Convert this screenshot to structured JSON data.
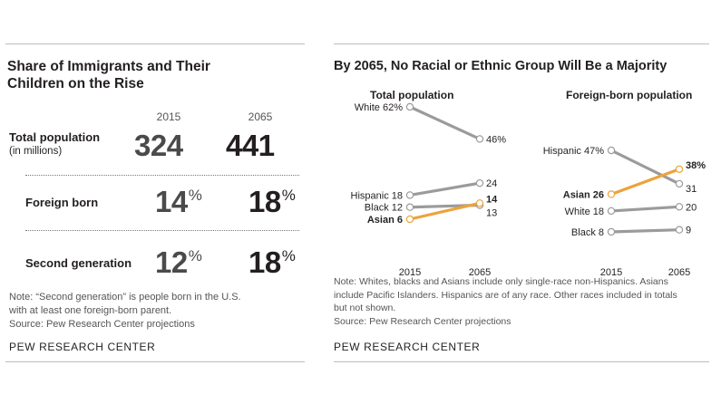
{
  "left": {
    "title_line1": "Share of Immigrants and Their",
    "title_line2": "Children on the Rise",
    "year_a": "2015",
    "year_b": "2065",
    "rows": [
      {
        "label": "Total population",
        "sub": "(in millions)",
        "a": "324",
        "b": "441",
        "pct": false
      },
      {
        "label": "Foreign born",
        "a": "14",
        "b": "18",
        "pct": true
      },
      {
        "label": "Second generation",
        "a": "12",
        "b": "18",
        "pct": true
      }
    ],
    "pct_sign": "%",
    "note_line1": "Note: “Second generation” is people born in the U.S.",
    "note_line2": "with at least one foreign-born parent.",
    "source": "Source: Pew Research Center projections",
    "brand": "PEW RESEARCH CENTER"
  },
  "right": {
    "title": "By 2065, No Racial or Ethnic Group Will Be a Majority",
    "note_line1": "Note: Whites, blacks and Asians include only single-race non-Hispanics. Asians",
    "note_line2": "include Pacific Islanders. Hispanics are of any race. Other races included in totals",
    "note_line3": "but not shown.",
    "source": "Source: Pew Research Center projections",
    "brand": "PEW RESEARCH CENTER"
  },
  "colors": {
    "gray_line": "#9b9b9b",
    "asian_line": "#eca33b",
    "text": "#231f20",
    "muted": "#555555"
  },
  "chart_data": [
    {
      "type": "table",
      "title": "Share of Immigrants and Their Children on the Rise",
      "columns": [
        "2015",
        "2065"
      ],
      "rows": [
        {
          "label": "Total population (in millions)",
          "values": [
            324,
            441
          ]
        },
        {
          "label": "Foreign born",
          "values": [
            14,
            18
          ],
          "unit": "%"
        },
        {
          "label": "Second generation",
          "values": [
            12,
            18
          ],
          "unit": "%"
        }
      ]
    },
    {
      "type": "line",
      "title": "Total population",
      "x": [
        "2015",
        "2065"
      ],
      "ylim": [
        0,
        70
      ],
      "series": [
        {
          "name": "White",
          "values": [
            62,
            46
          ],
          "labels": [
            "62%",
            "46%"
          ],
          "color": "#9b9b9b"
        },
        {
          "name": "Hispanic",
          "values": [
            18,
            24
          ],
          "labels": [
            "18",
            "24"
          ],
          "color": "#9b9b9b"
        },
        {
          "name": "Black",
          "values": [
            12,
            13
          ],
          "labels": [
            "12",
            "13"
          ],
          "color": "#9b9b9b"
        },
        {
          "name": "Asian",
          "values": [
            6,
            14
          ],
          "labels": [
            "6",
            "14"
          ],
          "color": "#eca33b",
          "highlight": true
        }
      ]
    },
    {
      "type": "line",
      "title": "Foreign-born population",
      "x": [
        "2015",
        "2065"
      ],
      "ylim": [
        0,
        55
      ],
      "series": [
        {
          "name": "Hispanic",
          "values": [
            47,
            31
          ],
          "labels": [
            "47%",
            "31"
          ],
          "color": "#9b9b9b"
        },
        {
          "name": "Asian",
          "values": [
            26,
            38
          ],
          "labels": [
            "26",
            "38%"
          ],
          "color": "#eca33b",
          "highlight": true
        },
        {
          "name": "White",
          "values": [
            18,
            20
          ],
          "labels": [
            "18",
            "20"
          ],
          "color": "#9b9b9b"
        },
        {
          "name": "Black",
          "values": [
            8,
            9
          ],
          "labels": [
            "8",
            "9"
          ],
          "color": "#9b9b9b"
        }
      ]
    }
  ]
}
